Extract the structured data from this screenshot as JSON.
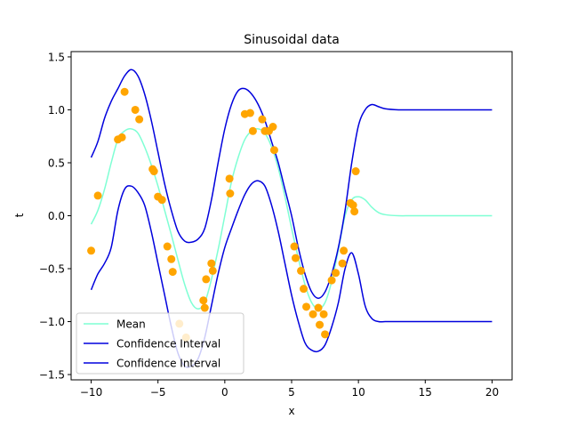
{
  "chart_data": {
    "type": "line",
    "title": "Sinusoidal data",
    "xlabel": "x",
    "ylabel": "t",
    "xlim": [
      -11.5,
      21.5
    ],
    "ylim": [
      -1.55,
      1.55
    ],
    "xticks": [
      -10,
      -5,
      0,
      5,
      10,
      15,
      20
    ],
    "yticks": [
      -1.5,
      -1.0,
      -0.5,
      0.0,
      0.5,
      1.0,
      1.5
    ],
    "xtick_labels": [
      "−10",
      "−5",
      "0",
      "5",
      "10",
      "15",
      "20"
    ],
    "ytick_labels": [
      "−1.5",
      "−1.0",
      "−0.5",
      "0.0",
      "0.5",
      "1.0",
      "1.5"
    ],
    "grid": false,
    "legend_position": "lower-left",
    "series": [
      {
        "name": "Mean",
        "kind": "line",
        "color": "#7fffd4",
        "x": [
          -10,
          -9.5,
          -9,
          -8.5,
          -8,
          -7.5,
          -7,
          -6.5,
          -6,
          -5.5,
          -5,
          -4.5,
          -4,
          -3.5,
          -3,
          -2.5,
          -2,
          -1.5,
          -1,
          -0.5,
          0,
          0.5,
          1,
          1.5,
          2,
          2.5,
          3,
          3.5,
          4,
          4.5,
          5,
          5.5,
          6,
          6.5,
          7,
          7.5,
          8,
          8.5,
          9,
          9.5,
          10,
          10.5,
          11,
          11.5,
          12,
          13,
          14,
          16,
          18,
          20
        ],
        "y": [
          -0.08,
          0.05,
          0.25,
          0.5,
          0.72,
          0.8,
          0.82,
          0.78,
          0.65,
          0.48,
          0.28,
          0.05,
          -0.18,
          -0.42,
          -0.65,
          -0.82,
          -0.88,
          -0.82,
          -0.6,
          -0.32,
          0.0,
          0.32,
          0.55,
          0.72,
          0.8,
          0.82,
          0.78,
          0.65,
          0.45,
          0.18,
          -0.12,
          -0.4,
          -0.65,
          -0.82,
          -0.88,
          -0.82,
          -0.62,
          -0.32,
          0.0,
          0.15,
          0.18,
          0.15,
          0.08,
          0.03,
          0.01,
          0.0,
          0.0,
          0.0,
          0.0,
          0.0
        ]
      },
      {
        "name": "Confidence Interval",
        "kind": "line",
        "color": "#0000dd",
        "x": [
          -10,
          -9.5,
          -9,
          -8.5,
          -8,
          -7.5,
          -7,
          -6.5,
          -6,
          -5.5,
          -5,
          -4.5,
          -4,
          -3.5,
          -3,
          -2.5,
          -2,
          -1.5,
          -1,
          -0.5,
          0,
          0.5,
          1,
          1.5,
          2,
          2.5,
          3,
          3.5,
          4,
          4.5,
          5,
          5.5,
          6,
          6.5,
          7,
          7.5,
          8,
          8.5,
          9,
          9.5,
          10,
          10.5,
          11,
          11.5,
          12,
          13,
          14,
          16,
          18,
          20
        ],
        "y": [
          0.55,
          0.7,
          0.92,
          1.08,
          1.2,
          1.32,
          1.38,
          1.32,
          1.15,
          0.9,
          0.6,
          0.3,
          0.05,
          -0.15,
          -0.24,
          -0.25,
          -0.22,
          -0.12,
          0.15,
          0.5,
          0.82,
          1.05,
          1.18,
          1.2,
          1.15,
          1.05,
          0.9,
          0.7,
          0.5,
          0.25,
          0.0,
          -0.3,
          -0.55,
          -0.72,
          -0.78,
          -0.72,
          -0.55,
          -0.3,
          0.05,
          0.5,
          0.85,
          1.0,
          1.05,
          1.03,
          1.01,
          1.0,
          1.0,
          1.0,
          1.0,
          1.0
        ]
      },
      {
        "name": "Confidence Interval",
        "kind": "line",
        "color": "#0000dd",
        "x": [
          -10,
          -9.5,
          -9,
          -8.5,
          -8,
          -7.5,
          -7,
          -6.5,
          -6,
          -5.5,
          -5,
          -4.5,
          -4,
          -3.5,
          -3,
          -2.5,
          -2,
          -1.5,
          -1,
          -0.5,
          0,
          0.5,
          1,
          1.5,
          2,
          2.5,
          3,
          3.5,
          4,
          4.5,
          5,
          5.5,
          6,
          6.5,
          7,
          7.5,
          8,
          8.5,
          9,
          9.5,
          10,
          10.5,
          11,
          11.5,
          12,
          13,
          14,
          16,
          18,
          20
        ],
        "y": [
          -0.7,
          -0.55,
          -0.45,
          -0.3,
          0.05,
          0.25,
          0.28,
          0.22,
          0.1,
          -0.15,
          -0.45,
          -0.75,
          -1.05,
          -1.3,
          -1.42,
          -1.42,
          -1.35,
          -1.15,
          -0.85,
          -0.55,
          -0.3,
          -0.12,
          0.05,
          0.2,
          0.3,
          0.33,
          0.28,
          0.1,
          -0.15,
          -0.45,
          -0.75,
          -1.0,
          -1.2,
          -1.27,
          -1.28,
          -1.22,
          -1.05,
          -0.82,
          -0.5,
          -0.35,
          -0.55,
          -0.85,
          -0.97,
          -1.0,
          -1.0,
          -1.0,
          -1.0,
          -1.0,
          -1.0,
          -1.0
        ]
      },
      {
        "name": "",
        "kind": "scatter",
        "color": "#ffa500",
        "x": [
          -10,
          -9.5,
          -8,
          -7.7,
          -7.5,
          -6.7,
          -6.4,
          -5.4,
          -5.3,
          -5.0,
          -4.7,
          -4.3,
          -4.0,
          -3.9,
          -3.4,
          -2.9,
          -1.6,
          -1.5,
          -1.4,
          -1.0,
          -0.9,
          0.35,
          0.4,
          1.5,
          1.9,
          2.1,
          2.8,
          3.0,
          3.3,
          3.6,
          3.7,
          5.2,
          5.3,
          5.7,
          5.9,
          6.1,
          6.6,
          7.0,
          7.1,
          7.4,
          7.5,
          8.0,
          8.3,
          8.8,
          8.9,
          9.4,
          9.6,
          9.7,
          9.8
        ],
        "y": [
          -0.33,
          0.19,
          0.72,
          0.74,
          1.17,
          1.0,
          0.91,
          0.44,
          0.42,
          0.18,
          0.15,
          -0.29,
          -0.41,
          -0.53,
          -1.02,
          -1.15,
          -0.8,
          -0.87,
          -0.6,
          -0.45,
          -0.52,
          0.35,
          0.21,
          0.96,
          0.97,
          0.8,
          0.91,
          0.8,
          0.8,
          0.84,
          0.62,
          -0.29,
          -0.4,
          -0.52,
          -0.69,
          -0.86,
          -0.93,
          -0.87,
          -1.03,
          -0.93,
          -1.12,
          -0.61,
          -0.54,
          -0.45,
          -0.33,
          0.12,
          0.1,
          0.04,
          0.42
        ]
      }
    ]
  }
}
